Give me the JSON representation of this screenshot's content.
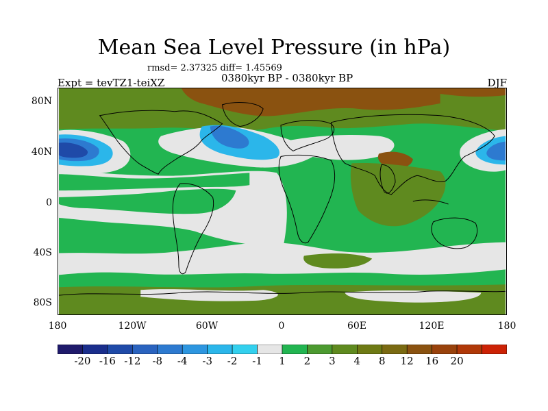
{
  "title": "Mean Sea Level Pressure (in hPa)",
  "stats": "rmsd= 2.37325 diff= 1.45569",
  "experiment": "Expt = tevTZ1-teiXZ",
  "period": "0380kyr BP - 0380kyr BP",
  "season": "DJF",
  "lat_labels": [
    "80N",
    "40N",
    "0",
    "40S",
    "80S"
  ],
  "lon_labels": [
    "180",
    "120W",
    "60W",
    "0",
    "60E",
    "120E",
    "180"
  ],
  "colorbar": {
    "colors": [
      "#1f1a6b",
      "#1a2e8c",
      "#1f4aa8",
      "#2a63bf",
      "#2d7ad0",
      "#2d96e0",
      "#2bb6ea",
      "#33d0ee",
      "#e6e6e6",
      "#22b551",
      "#4c9a30",
      "#5f8a1f",
      "#6e7a14",
      "#7a6a12",
      "#8a5210",
      "#99420c",
      "#b03808",
      "#cc2205"
    ],
    "labels": [
      "-20",
      "-16",
      "-12",
      "-8",
      "-4",
      "-3",
      "-2",
      "-1",
      "1",
      "2",
      "3",
      "4",
      "8",
      "12",
      "16",
      "20"
    ]
  },
  "colors": {
    "positive_low": "#22b551",
    "positive_mid": "#5f8a1f",
    "positive_high": "#8a5210",
    "near_zero": "#e6e6e6",
    "negative_light": "#2bb6ea",
    "negative_mid": "#2d7ad0",
    "negative_strong": "#1f4aa8"
  }
}
